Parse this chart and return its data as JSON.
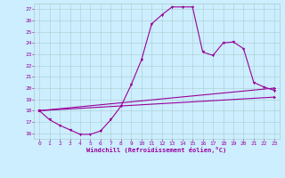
{
  "xlabel": "Windchill (Refroidissement éolien,°C)",
  "bg_color": "#cceeff",
  "grid_color": "#aacccc",
  "line_color": "#990099",
  "xlim": [
    -0.5,
    23.5
  ],
  "ylim": [
    15.5,
    27.5
  ],
  "xticks": [
    0,
    1,
    2,
    3,
    4,
    5,
    6,
    7,
    8,
    9,
    10,
    11,
    12,
    13,
    14,
    15,
    16,
    17,
    18,
    19,
    20,
    21,
    22,
    23
  ],
  "yticks": [
    16,
    17,
    18,
    19,
    20,
    21,
    22,
    23,
    24,
    25,
    26,
    27
  ],
  "series1_x": [
    0,
    1,
    2,
    3,
    4,
    5,
    6,
    7,
    8,
    9,
    10,
    11,
    12,
    13,
    14,
    15,
    16,
    17,
    18,
    19,
    20,
    21,
    22,
    23
  ],
  "series1_y": [
    18.0,
    17.2,
    16.7,
    16.3,
    15.9,
    15.9,
    16.2,
    17.2,
    18.4,
    20.3,
    22.5,
    25.7,
    26.5,
    27.2,
    27.2,
    27.2,
    23.2,
    22.9,
    24.0,
    24.1,
    23.5,
    20.5,
    20.1,
    19.8
  ],
  "series2_x": [
    0,
    23
  ],
  "series2_y": [
    18.0,
    19.2
  ],
  "series3_x": [
    0,
    23
  ],
  "series3_y": [
    18.0,
    20.0
  ],
  "marker1": "v",
  "marker2": ">",
  "marker3": ">"
}
